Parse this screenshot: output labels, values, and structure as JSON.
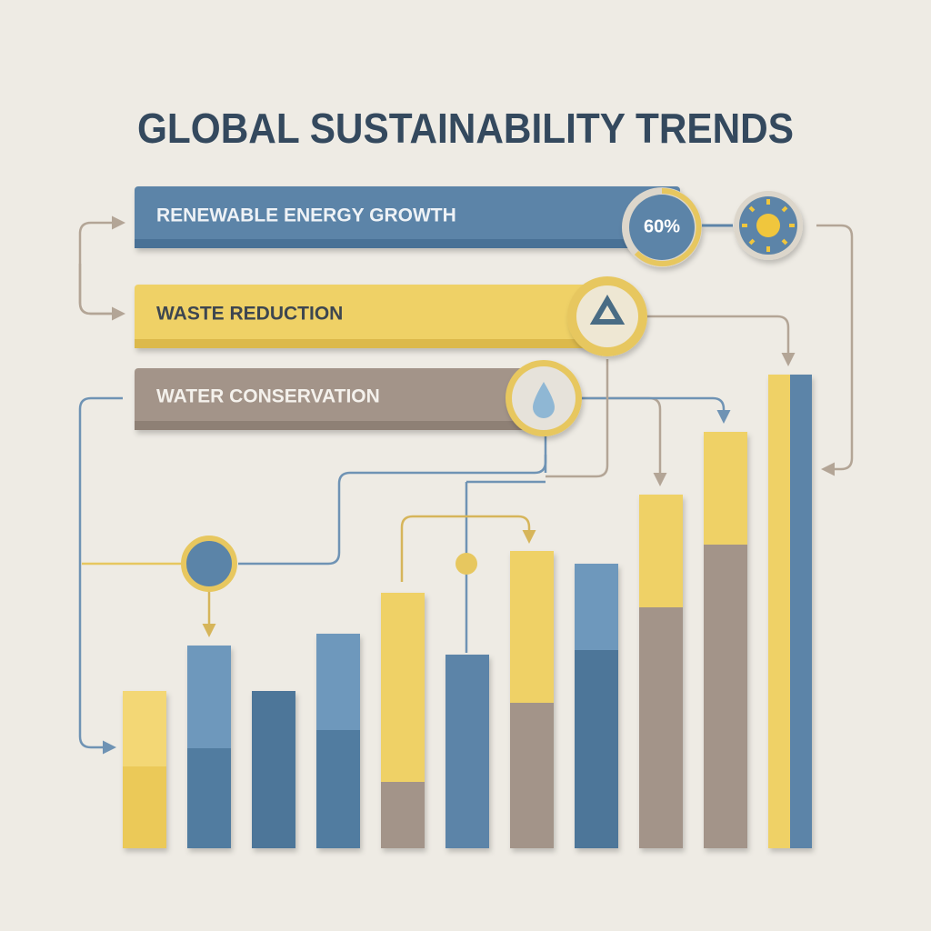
{
  "title": "GLOBAL SUSTAINABILITY TRENDS",
  "banners": [
    {
      "label": "RENEWABLE ENERGY GROWTH",
      "badge": "60%"
    },
    {
      "label": "WASTE REDUCTION"
    },
    {
      "label": "WATER CONSERVATION"
    }
  ]
}
